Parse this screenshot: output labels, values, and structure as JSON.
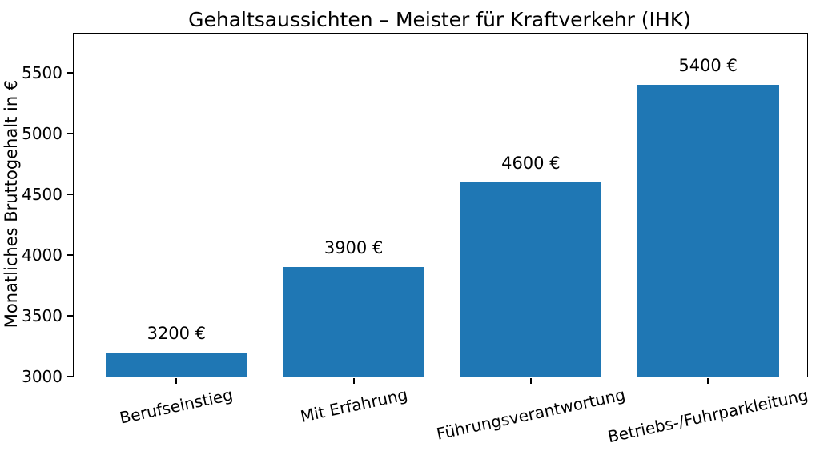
{
  "chart_data": {
    "type": "bar",
    "title": "Gehaltsaussichten – Meister für Kraftverkehr (IHK)",
    "xlabel": "",
    "ylabel": "Monatliches Bruttogehalt in €",
    "categories": [
      "Berufseinstieg",
      "Mit Erfahrung",
      "Führungsverantwortung",
      "Betriebs-/Fuhrparkleitung"
    ],
    "values": [
      3200,
      3900,
      4600,
      5400
    ],
    "value_labels": [
      "3200 €",
      "3900 €",
      "4600 €",
      "5400 €"
    ],
    "yticks": [
      3000,
      3500,
      4000,
      4500,
      5000,
      5500
    ],
    "ylim": [
      3000,
      5820
    ],
    "bar_color": "#1f77b4",
    "background_color": "#ffffff",
    "grid": false,
    "legend": null,
    "xtick_rotation_deg": 12
  }
}
